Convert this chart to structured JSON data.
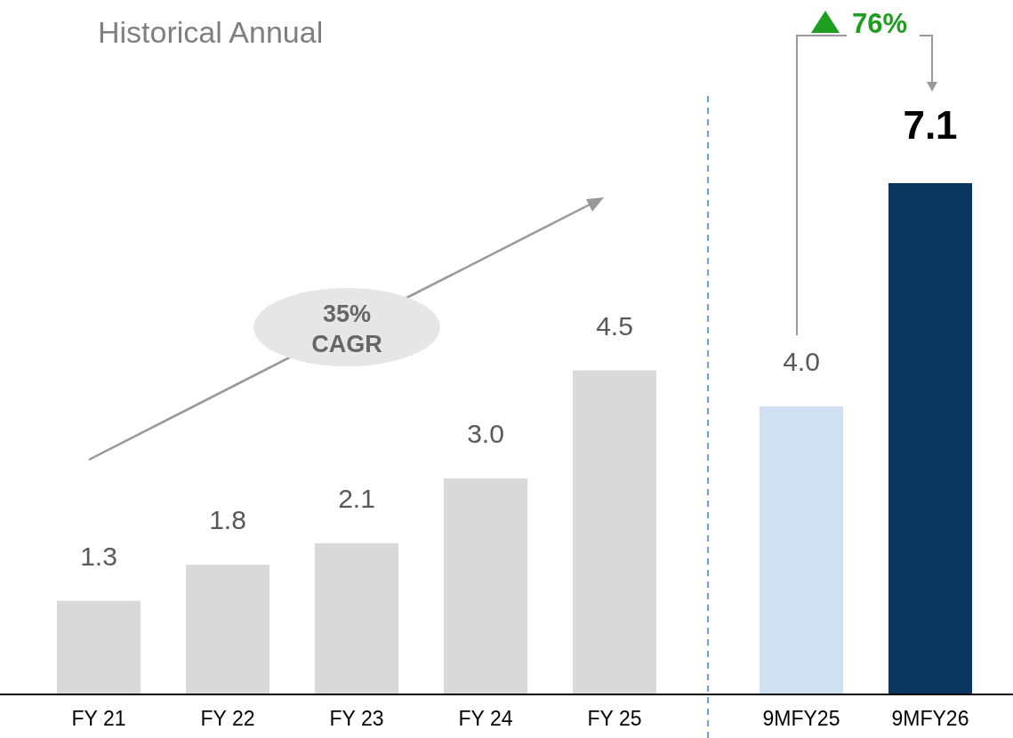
{
  "chart_data": {
    "type": "bar",
    "title": "Historical Annual",
    "categories": [
      "FY 21",
      "FY 22",
      "FY 23",
      "FY 24",
      "FY 25",
      "9MFY25",
      "9MFY26"
    ],
    "values": [
      1.3,
      1.8,
      2.1,
      3.0,
      4.5,
      4.0,
      7.1
    ],
    "colors": [
      "#d9d9d9",
      "#d9d9d9",
      "#d9d9d9",
      "#d9d9d9",
      "#d9d9d9",
      "#cfe0f1",
      "#0a355e"
    ],
    "value_labels": [
      "1.3",
      "1.8",
      "2.1",
      "3.0",
      "4.5",
      "4.0",
      "7.1"
    ],
    "annotations": [
      "35% CAGR",
      "76%"
    ]
  }
}
